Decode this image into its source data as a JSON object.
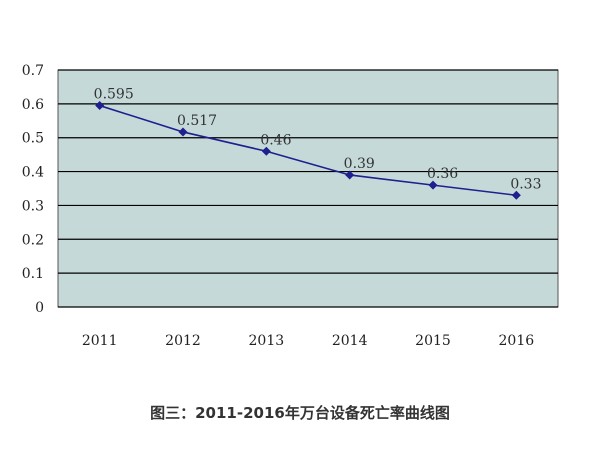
{
  "caption": "图三：2011-2016年万台设备死亡率曲线图",
  "colors": {
    "plot_background": "#c5d9d9",
    "grid": "#000000",
    "series": "#1f1f8f"
  },
  "chart_data": {
    "type": "line",
    "title": "",
    "xlabel": "",
    "ylabel": "",
    "categories": [
      "2011",
      "2012",
      "2013",
      "2014",
      "2015",
      "2016"
    ],
    "series": [
      {
        "values": [
          0.595,
          0.517,
          0.46,
          0.39,
          0.36,
          0.33
        ],
        "labels": [
          "0.595",
          "0.517",
          "0.46",
          "0.39",
          "0.36",
          "0.33"
        ]
      }
    ],
    "ylim": [
      0,
      0.7
    ],
    "yticks": [
      "0",
      "0.1",
      "0.2",
      "0.3",
      "0.4",
      "0.5",
      "0.6",
      "0.7"
    ],
    "grid": true,
    "legend": "none",
    "marker": "diamond"
  }
}
